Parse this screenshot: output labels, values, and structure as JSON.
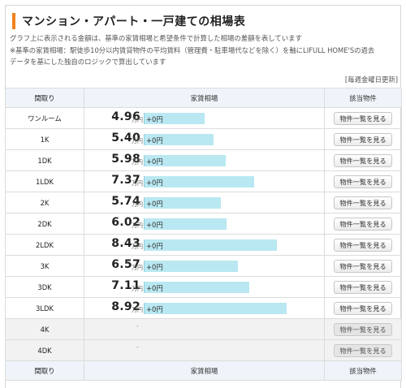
{
  "title": "マンション・アパート・一戸建ての相場表",
  "notes": [
    "グラフ上に表示される金額は、基準の家賃相場と希望条件で計算した相場の差額を表しています",
    "※基準の家賃相場：駅徒歩10分以内賃貸物件の平均賃料（管理費・駐車場代などを除く）を軸にLIFULL HOME'Sの過去",
    "データを基にした独自のロジックで算出しています"
  ],
  "update_note": "[毎週金曜日更新]",
  "columns": {
    "madori": "間取り",
    "rent": "家賃相場",
    "prop": "該当物件"
  },
  "unit": "万円",
  "rows": [
    {
      "madori": "ワンルーム",
      "price": "4.96",
      "value": 4.96,
      "diff": "+0円",
      "button": "物件一覧を見る"
    },
    {
      "madori": "1K",
      "price": "5.40",
      "value": 5.4,
      "diff": "+0円",
      "button": "物件一覧を見る"
    },
    {
      "madori": "1DK",
      "price": "5.98",
      "value": 5.98,
      "diff": "+0円",
      "button": "物件一覧を見る"
    },
    {
      "madori": "1LDK",
      "price": "7.37",
      "value": 7.37,
      "diff": "+0円",
      "button": "物件一覧を見る"
    },
    {
      "madori": "2K",
      "price": "5.74",
      "value": 5.74,
      "diff": "+0円",
      "button": "物件一覧を見る"
    },
    {
      "madori": "2DK",
      "price": "6.02",
      "value": 6.02,
      "diff": "+0円",
      "button": "物件一覧を見る"
    },
    {
      "madori": "2LDK",
      "price": "8.43",
      "value": 8.43,
      "diff": "+0円",
      "button": "物件一覧を見る"
    },
    {
      "madori": "3K",
      "price": "6.57",
      "value": 6.57,
      "diff": "+0円",
      "button": "物件一覧を見る"
    },
    {
      "madori": "3DK",
      "price": "7.11",
      "value": 7.11,
      "diff": "+0円",
      "button": "物件一覧を見る"
    },
    {
      "madori": "3LDK",
      "price": "8.92",
      "value": 8.92,
      "diff": "+0円",
      "button": "物件一覧を見る"
    }
  ],
  "empty_rows": [
    {
      "madori": "4K",
      "dash": "-",
      "button": "物件一覧を見る"
    },
    {
      "madori": "4DK",
      "dash": "-",
      "button": "物件一覧を見る"
    }
  ],
  "colors": {
    "accent": "#f0821e",
    "bar": "#b9e8f2",
    "header_bg": "#eef4f9"
  }
}
